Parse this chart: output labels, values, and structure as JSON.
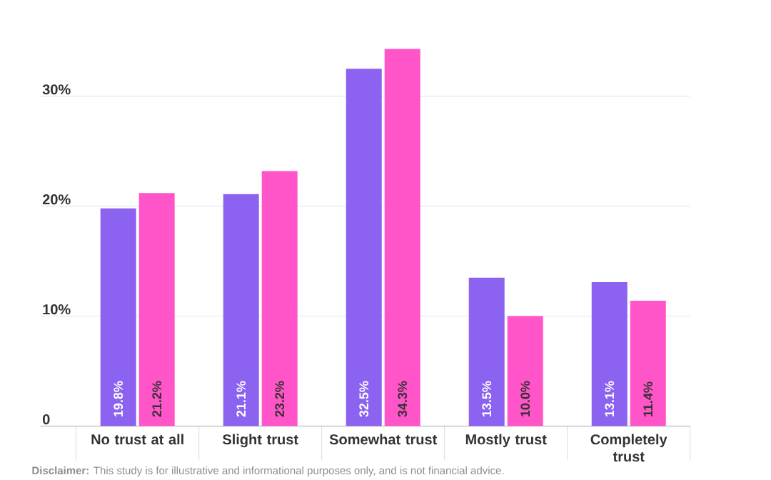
{
  "chart_data": {
    "type": "bar",
    "categories": [
      "No trust at all",
      "Slight trust",
      "Somewhat trust",
      "Mostly trust",
      "Completely trust"
    ],
    "series": [
      {
        "color": "#8b63f0",
        "values": [
          19.8,
          21.1,
          32.5,
          13.5,
          13.1
        ],
        "value_labels": [
          "19.8%",
          "21.1%",
          "32.5%",
          "13.5%",
          "13.1%"
        ]
      },
      {
        "color": "#ff55c8",
        "values": [
          21.2,
          23.2,
          34.3,
          10.0,
          11.4
        ],
        "value_labels": [
          "21.2%",
          "23.2%",
          "34.3%",
          "10.0%",
          "11.4%"
        ]
      }
    ],
    "yticks": [
      0,
      {
        "value": 10,
        "label": "10%"
      },
      {
        "value": 20,
        "label": "20%"
      },
      {
        "value": 30,
        "label": "30%"
      }
    ],
    "ylim": [
      0,
      34.3
    ],
    "grid": "y",
    "annotations": [
      "**Disclaimer:** This study is for illustrative and informational purposes only, and is not financial advice."
    ]
  }
}
